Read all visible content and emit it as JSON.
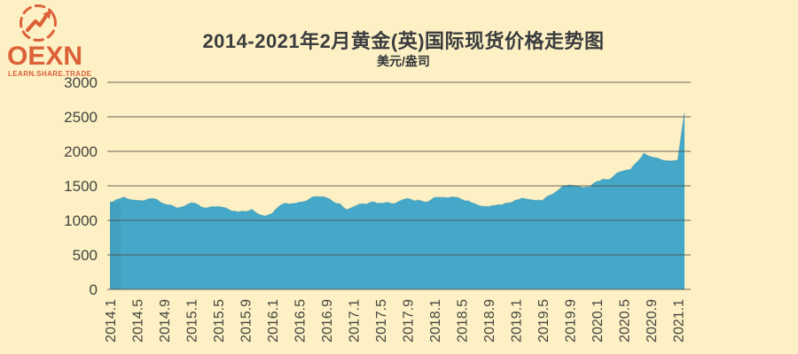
{
  "logo": {
    "brand": "OEXN",
    "tagline": "LEARN.SHARE.TRADE",
    "icon": "trend-arrow-icon",
    "accent_color": "#dc6139"
  },
  "header": {
    "title": "2014-2021年2月黄金(英)国际现货价格走势图",
    "subtitle": "美元/盎司"
  },
  "chart_data": {
    "type": "area",
    "title": "2014-2021年2月黄金(英)国际现货价格走势图",
    "ylabel": "美元/盎司",
    "ylim": [
      0,
      3000
    ],
    "y_ticks": [
      0,
      500,
      1000,
      1500,
      2000,
      2500,
      3000
    ],
    "grid": true,
    "legend": false,
    "x_interval": "monthly",
    "x_range": [
      "2014.1",
      "2021.2"
    ],
    "x_tick_labels": [
      "2014.1",
      "2014.5",
      "2014.9",
      "2015.1",
      "2015.5",
      "2015.9",
      "2016.1",
      "2016.5",
      "2016.9",
      "2017.1",
      "2017.5",
      "2017.9",
      "2018.1",
      "2018.5",
      "2018.9",
      "2019.1",
      "2019.5",
      "2019.9",
      "2020.1",
      "2020.5",
      "2020.9",
      "2021.1"
    ],
    "x_tick_month_indices": [
      0,
      4,
      8,
      12,
      16,
      20,
      24,
      28,
      32,
      36,
      40,
      44,
      48,
      52,
      56,
      60,
      64,
      68,
      72,
      76,
      80,
      84
    ],
    "values": [
      1260,
      1301,
      1336,
      1299,
      1288,
      1279,
      1311,
      1296,
      1237,
      1223,
      1176,
      1201,
      1251,
      1227,
      1179,
      1198,
      1199,
      1182,
      1131,
      1118,
      1125,
      1159,
      1086,
      1061,
      1098,
      1200,
      1246,
      1242,
      1261,
      1277,
      1337,
      1340,
      1327,
      1267,
      1238,
      1152,
      1192,
      1234,
      1231,
      1267,
      1246,
      1261,
      1237,
      1283,
      1315,
      1280,
      1282,
      1265,
      1332,
      1330,
      1325,
      1335,
      1303,
      1282,
      1238,
      1201,
      1198,
      1215,
      1221,
      1250,
      1292,
      1320,
      1301,
      1286,
      1284,
      1359,
      1413,
      1498,
      1511,
      1495,
      1471,
      1480,
      1561,
      1597,
      1592,
      1683,
      1716,
      1732,
      1843,
      1969,
      1922,
      1900,
      1863,
      1858,
      1871,
      2550
    ],
    "colors": {
      "area": "#46a8c8",
      "area_edge": "#2e93b6",
      "grid": "#4c4e47",
      "text": "#43453f",
      "background": "#fdf0c4"
    }
  }
}
